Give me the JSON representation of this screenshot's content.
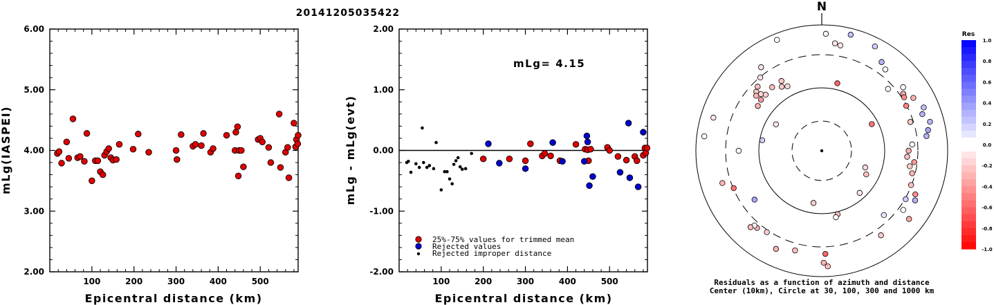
{
  "page": {
    "title": "20141205035422"
  },
  "chart_data": [
    {
      "id": "magnitude-vs-distance",
      "type": "scatter",
      "xlabel": "Epicentral distance (km)",
      "ylabel": "mLg(IASPEI)",
      "xlim": [
        0,
        590
      ],
      "ylim": [
        2.0,
        6.0
      ],
      "x_ticks": [
        "100",
        "200",
        "300",
        "400",
        "500"
      ],
      "y_ticks": [
        "2.00",
        "3.00",
        "4.00",
        "5.00",
        "6.00"
      ],
      "marker_color": "#e00000",
      "points": [
        [
          18,
          3.95
        ],
        [
          22,
          3.98
        ],
        [
          28,
          3.79
        ],
        [
          40,
          4.14
        ],
        [
          45,
          3.87
        ],
        [
          55,
          4.52
        ],
        [
          66,
          3.88
        ],
        [
          72,
          3.9
        ],
        [
          82,
          3.82
        ],
        [
          88,
          4.28
        ],
        [
          100,
          3.5
        ],
        [
          108,
          3.83
        ],
        [
          114,
          3.83
        ],
        [
          120,
          3.65
        ],
        [
          126,
          3.6
        ],
        [
          130,
          3.92
        ],
        [
          135,
          3.98
        ],
        [
          140,
          4.03
        ],
        [
          145,
          3.88
        ],
        [
          150,
          3.84
        ],
        [
          158,
          3.85
        ],
        [
          165,
          4.1
        ],
        [
          198,
          4.02
        ],
        [
          210,
          4.27
        ],
        [
          235,
          3.97
        ],
        [
          300,
          4.0
        ],
        [
          302,
          3.85
        ],
        [
          312,
          4.26
        ],
        [
          340,
          4.07
        ],
        [
          346,
          4.1
        ],
        [
          360,
          4.08
        ],
        [
          365,
          4.28
        ],
        [
          382,
          3.97
        ],
        [
          388,
          4.03
        ],
        [
          420,
          4.25
        ],
        [
          440,
          4.0
        ],
        [
          442,
          4.3
        ],
        [
          446,
          4.39
        ],
        [
          448,
          3.58
        ],
        [
          450,
          4.0
        ],
        [
          455,
          4.0
        ],
        [
          460,
          3.73
        ],
        [
          495,
          4.18
        ],
        [
          500,
          4.2
        ],
        [
          505,
          4.14
        ],
        [
          520,
          4.05
        ],
        [
          525,
          3.8
        ],
        [
          545,
          4.6
        ],
        [
          548,
          3.72
        ],
        [
          560,
          3.97
        ],
        [
          565,
          4.05
        ],
        [
          568,
          3.55
        ],
        [
          580,
          4.45
        ],
        [
          584,
          4.06
        ],
        [
          586,
          4.18
        ],
        [
          589,
          4.11
        ],
        [
          590,
          4.25
        ]
      ]
    },
    {
      "id": "residual-vs-distance",
      "type": "scatter",
      "xlabel": "Epicentral distance (km)",
      "ylabel": "mLg - mLg(evt)",
      "xlim": [
        0,
        590
      ],
      "ylim": [
        -2.0,
        2.0
      ],
      "x_ticks": [
        "100",
        "200",
        "300",
        "400",
        "500"
      ],
      "y_ticks": [
        "-2.00",
        "-1.00",
        "0.00",
        "1.00",
        "2.00"
      ],
      "annotation": "mLg= 4.15",
      "reference_line": 0.0,
      "legend": [
        {
          "label": "25%-75% values for trimmed mean",
          "color": "#e00000"
        },
        {
          "label": "Rejected values",
          "color": "#0000d0"
        },
        {
          "label": "Rejected improper distance",
          "color": "#000000"
        }
      ],
      "red_points": [
        [
          200,
          -0.14
        ],
        [
          262,
          -0.14
        ],
        [
          300,
          -0.17
        ],
        [
          312,
          0.11
        ],
        [
          340,
          -0.09
        ],
        [
          346,
          -0.05
        ],
        [
          360,
          -0.09
        ],
        [
          382,
          -0.17
        ],
        [
          420,
          0.1
        ],
        [
          442,
          0.02
        ],
        [
          448,
          0.01
        ],
        [
          450,
          -0.17
        ],
        [
          455,
          0.02
        ],
        [
          495,
          0.05
        ],
        [
          500,
          0.0
        ],
        [
          520,
          -0.1
        ],
        [
          540,
          -0.16
        ],
        [
          560,
          -0.1
        ],
        [
          565,
          -0.17
        ],
        [
          580,
          -0.08
        ],
        [
          584,
          0.04
        ],
        [
          586,
          -0.04
        ],
        [
          589,
          0.04
        ]
      ],
      "blue_points": [
        [
          212,
          0.11
        ],
        [
          238,
          -0.21
        ],
        [
          300,
          -0.3
        ],
        [
          365,
          0.13
        ],
        [
          388,
          -0.18
        ],
        [
          440,
          -0.18
        ],
        [
          446,
          0.24
        ],
        [
          448,
          0.14
        ],
        [
          452,
          -0.58
        ],
        [
          460,
          -0.43
        ],
        [
          525,
          -0.36
        ],
        [
          545,
          0.45
        ],
        [
          548,
          -0.45
        ],
        [
          568,
          -0.6
        ],
        [
          580,
          0.3
        ]
      ],
      "black_points": [
        [
          18,
          -0.2
        ],
        [
          22,
          -0.18
        ],
        [
          28,
          -0.36
        ],
        [
          40,
          -0.22
        ],
        [
          48,
          -0.28
        ],
        [
          55,
          0.37
        ],
        [
          58,
          -0.2
        ],
        [
          66,
          -0.28
        ],
        [
          72,
          -0.25
        ],
        [
          82,
          -0.3
        ],
        [
          88,
          0.13
        ],
        [
          100,
          -0.65
        ],
        [
          108,
          -0.35
        ],
        [
          114,
          -0.35
        ],
        [
          120,
          -0.47
        ],
        [
          126,
          -0.55
        ],
        [
          130,
          -0.23
        ],
        [
          135,
          -0.17
        ],
        [
          140,
          -0.12
        ],
        [
          145,
          -0.27
        ],
        [
          150,
          -0.31
        ],
        [
          158,
          -0.3
        ],
        [
          172,
          -0.05
        ]
      ]
    },
    {
      "id": "residual-azimuth-map",
      "type": "scatter",
      "north_label": "N",
      "caption_line1": "Residuals as a function of azimuth and distance",
      "caption_line2": "Center (10km), Circle at 30, 100, 300 and 1000 km",
      "colorbar_title": "Res",
      "colorbar_ticks": [
        "1.0",
        "0.8",
        "0.6",
        "0.4",
        "0.2",
        "0.0",
        "-0.2",
        "-0.4",
        "-0.6",
        "-0.8",
        "-1.0"
      ],
      "stations": [
        {
          "az": 27,
          "r": 0.93,
          "res": 0.2
        },
        {
          "az": 14,
          "r": 0.95,
          "res": 0.25
        },
        {
          "az": 2,
          "r": 0.93,
          "res": -0.05
        },
        {
          "az": -22,
          "r": 0.95,
          "res": 0.0
        },
        {
          "az": 7,
          "r": 0.86,
          "res": -0.1
        },
        {
          "az": 10,
          "r": 0.85,
          "res": -0.1
        },
        {
          "az": 34,
          "r": 0.85,
          "res": 0.3
        },
        {
          "az": 38,
          "r": 0.82,
          "res": 0.0
        },
        {
          "az": -36,
          "r": 0.82,
          "res": -0.12
        },
        {
          "az": -40,
          "r": 0.76,
          "res": -0.12
        },
        {
          "az": -45,
          "r": 0.72,
          "res": -0.25
        },
        {
          "az": -48,
          "r": 0.7,
          "res": -0.2
        },
        {
          "az": -47,
          "r": 0.66,
          "res": -0.15
        },
        {
          "az": -45,
          "r": 0.63,
          "res": -0.18
        },
        {
          "az": -50,
          "r": 0.63,
          "res": -0.4
        },
        {
          "az": -55,
          "r": 0.62,
          "res": -0.3
        },
        {
          "az": -50,
          "r": 0.68,
          "res": -0.3
        },
        {
          "az": -38,
          "r": 0.64,
          "res": -0.25
        },
        {
          "az": -32,
          "r": 0.6,
          "res": -0.2
        },
        {
          "az": -28,
          "r": 0.58,
          "res": -0.15
        },
        {
          "az": -30,
          "r": 0.64,
          "res": -0.22
        },
        {
          "az": 13,
          "r": 0.55,
          "res": -0.6
        },
        {
          "az": 47,
          "r": 0.72,
          "res": 0.0
        },
        {
          "az": 52,
          "r": 0.82,
          "res": 0.0
        },
        {
          "az": 55,
          "r": 0.79,
          "res": -0.35
        },
        {
          "az": 57,
          "r": 0.78,
          "res": -0.45
        },
        {
          "az": 62,
          "r": 0.76,
          "res": -0.5
        },
        {
          "az": 60,
          "r": 0.84,
          "res": -0.3
        },
        {
          "az": 67,
          "r": 0.88,
          "res": 0.25
        },
        {
          "az": 70,
          "r": 0.85,
          "res": 0.3
        },
        {
          "az": 75,
          "r": 0.89,
          "res": 0.28
        },
        {
          "az": 79,
          "r": 0.86,
          "res": 0.35
        },
        {
          "az": 82,
          "r": 0.84,
          "res": 0.3
        },
        {
          "az": 72,
          "r": 0.74,
          "res": -0.2
        },
        {
          "az": 86,
          "r": 0.72,
          "res": 0.0
        },
        {
          "az": 90,
          "r": 0.69,
          "res": -0.3
        },
        {
          "az": 94,
          "r": 0.68,
          "res": -0.25
        },
        {
          "az": 97,
          "r": 0.74,
          "res": -0.4
        },
        {
          "az": 100,
          "r": 0.71,
          "res": -0.2
        },
        {
          "az": 104,
          "r": 0.74,
          "res": -0.3
        },
        {
          "az": 111,
          "r": 0.76,
          "res": -0.25
        },
        {
          "az": 115,
          "r": 0.82,
          "res": -0.45
        },
        {
          "az": 120,
          "r": 0.77,
          "res": 0.2
        },
        {
          "az": 118,
          "r": 0.84,
          "res": 0.3
        },
        {
          "az": 126,
          "r": 0.8,
          "res": 0.0
        },
        {
          "az": 128,
          "r": 0.88,
          "res": -0.35
        },
        {
          "az": 136,
          "r": 0.71,
          "res": 0.1
        },
        {
          "az": 145,
          "r": 0.82,
          "res": -0.2
        },
        {
          "az": 166,
          "r": 0.52,
          "res": -0.25
        },
        {
          "az": 168,
          "r": 0.54,
          "res": 0.0
        },
        {
          "az": 178,
          "r": 0.82,
          "res": -0.6
        },
        {
          "az": 179,
          "r": 0.89,
          "res": -0.3
        },
        {
          "az": 177,
          "r": 0.92,
          "res": -0.25
        },
        {
          "az": -165,
          "r": 0.82,
          "res": -0.25
        },
        {
          "az": -155,
          "r": 0.86,
          "res": -0.3
        },
        {
          "az": -146,
          "r": 0.78,
          "res": -0.2
        },
        {
          "az": -140,
          "r": 0.8,
          "res": -0.3
        },
        {
          "az": -138,
          "r": 0.8,
          "res": 0.0
        },
        {
          "az": -137,
          "r": 0.83,
          "res": -0.25
        },
        {
          "az": -126,
          "r": 0.66,
          "res": 0.35
        },
        {
          "az": -113,
          "r": 0.76,
          "res": -0.55
        },
        {
          "az": -108,
          "r": 0.83,
          "res": -0.3
        },
        {
          "az": -83,
          "r": 0.94,
          "res": 0.0
        },
        {
          "az": -90,
          "r": 0.66,
          "res": 0.0
        },
        {
          "az": -80,
          "r": 0.48,
          "res": 0.2
        },
        {
          "az": -73,
          "r": 0.9,
          "res": -0.1
        },
        {
          "az": -60,
          "r": 0.42,
          "res": -0.1
        },
        {
          "az": 111,
          "r": 0.37,
          "res": -0.15
        },
        {
          "az": 118,
          "r": 0.4,
          "res": -0.25
        },
        {
          "az": 138,
          "r": 0.45,
          "res": -0.1
        },
        {
          "az": 62,
          "r": 0.45,
          "res": -0.55
        },
        {
          "az": -171,
          "r": 0.42,
          "res": -0.2
        }
      ]
    }
  ]
}
